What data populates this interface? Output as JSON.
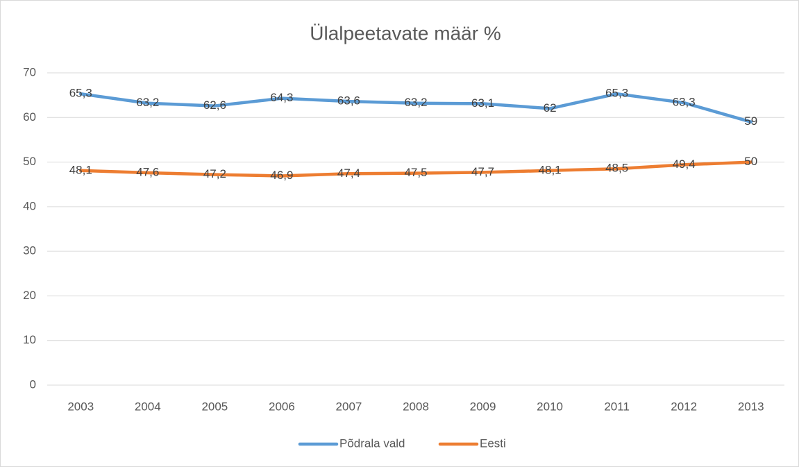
{
  "chart_data": {
    "type": "line",
    "title": "Ülalpeetavate määr %",
    "categories": [
      "2003",
      "2004",
      "2005",
      "2006",
      "2007",
      "2008",
      "2009",
      "2010",
      "2011",
      "2012",
      "2013"
    ],
    "series": [
      {
        "name": "Põdrala vald",
        "color": "#5b9bd5",
        "values": [
          65.3,
          63.2,
          62.6,
          64.3,
          63.6,
          63.2,
          63.1,
          62,
          65.3,
          63.3,
          59
        ],
        "value_labels": [
          "65,3",
          "63,2",
          "62,6",
          "64,3",
          "63,6",
          "63,2",
          "63,1",
          "62",
          "65,3",
          "63,3",
          "59"
        ]
      },
      {
        "name": "Eesti",
        "color": "#ed7d31",
        "values": [
          48.1,
          47.6,
          47.2,
          46.9,
          47.4,
          47.5,
          47.7,
          48.1,
          48.5,
          49.4,
          50
        ],
        "value_labels": [
          "48,1",
          "47,6",
          "47,2",
          "46,9",
          "47,4",
          "47,5",
          "47,7",
          "48,1",
          "48,5",
          "49,4",
          "50"
        ]
      }
    ],
    "ylim": [
      0,
      70
    ],
    "yticks": [
      0,
      10,
      20,
      30,
      40,
      50,
      60,
      70
    ],
    "grid": true,
    "legend": "bottom"
  }
}
